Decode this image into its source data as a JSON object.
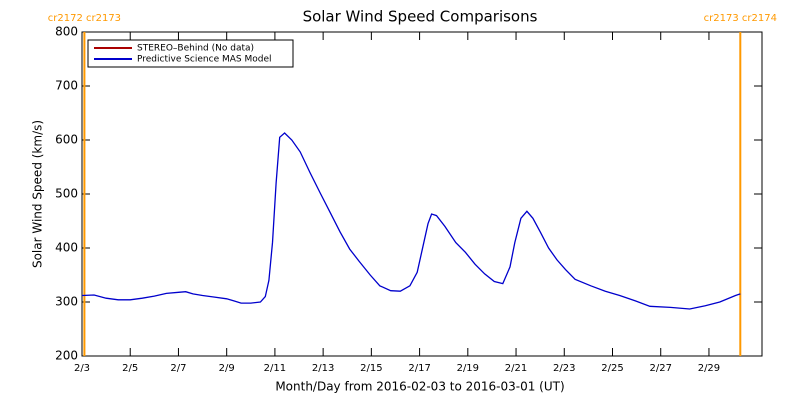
{
  "chart_data": {
    "type": "line",
    "title": "Solar Wind Speed Comparisons",
    "x_label": "Month/Day from 2016-02-03 to 2016-03-01 (UT)",
    "y_label": "Solar Wind Speed (km/s)",
    "xlim": [
      3,
      31.2
    ],
    "ylim": [
      200,
      800
    ],
    "yticks": [
      200,
      300,
      400,
      500,
      600,
      700,
      800
    ],
    "xticks": [
      {
        "value": 3,
        "label": "2/3"
      },
      {
        "value": 5,
        "label": "2/5"
      },
      {
        "value": 7,
        "label": "2/7"
      },
      {
        "value": 9,
        "label": "2/9"
      },
      {
        "value": 11,
        "label": "2/11"
      },
      {
        "value": 13,
        "label": "2/13"
      },
      {
        "value": 15,
        "label": "2/15"
      },
      {
        "value": 17,
        "label": "2/17"
      },
      {
        "value": 19,
        "label": "2/19"
      },
      {
        "value": 21,
        "label": "2/21"
      },
      {
        "value": 23,
        "label": "2/23"
      },
      {
        "value": 25,
        "label": "2/25"
      },
      {
        "value": 27,
        "label": "2/27"
      },
      {
        "value": 29,
        "label": "2/29"
      }
    ],
    "x": [
      3,
      3.5,
      4,
      4.5,
      5,
      5.5,
      6,
      6.5,
      7,
      7.3,
      7.6,
      8,
      8.5,
      9,
      9.3,
      9.6,
      10,
      10.4,
      10.6,
      10.75,
      10.9,
      11.05,
      11.2,
      11.4,
      11.7,
      12.05,
      12.45,
      12.9,
      13.3,
      13.7,
      14.1,
      14.5,
      14.95,
      15.35,
      15.8,
      16.2,
      16.6,
      16.9,
      17.1,
      17.35,
      17.5,
      17.7,
      18.05,
      18.5,
      18.9,
      19.3,
      19.7,
      20.1,
      20.45,
      20.75,
      20.95,
      21.2,
      21.45,
      21.7,
      22.0,
      22.35,
      22.7,
      23.05,
      23.45,
      24.1,
      24.7,
      25.3,
      25.95,
      26.55,
      27.4,
      28.2,
      28.85,
      29.45,
      30.1,
      30.3
    ],
    "series": [
      {
        "name": "STEREO–Behind (No data)",
        "color": "#aa0000",
        "values": [
          null,
          null,
          null,
          null,
          null,
          null,
          null,
          null,
          null,
          null,
          null,
          null,
          null,
          null,
          null,
          null,
          null,
          null,
          null,
          null,
          null,
          null,
          null,
          null,
          null,
          null,
          null,
          null,
          null,
          null,
          null,
          null,
          null,
          null,
          null,
          null,
          null,
          null,
          null,
          null,
          null,
          null,
          null,
          null,
          null,
          null,
          null,
          null,
          null,
          null,
          null,
          null,
          null,
          null,
          null,
          null,
          null,
          null,
          null,
          null,
          null,
          null,
          null,
          null,
          null,
          null,
          null,
          null,
          null,
          null
        ]
      },
      {
        "name": "Predictive Science MAS Model",
        "color": "#0000cc",
        "values": [
          312,
          313,
          307,
          304,
          304,
          307,
          311,
          316,
          318,
          319,
          315,
          312,
          309,
          306,
          302,
          298,
          298,
          300,
          310,
          340,
          410,
          520,
          605,
          613,
          600,
          578,
          540,
          500,
          465,
          430,
          398,
          375,
          350,
          330,
          321,
          320,
          330,
          355,
          395,
          445,
          463,
          460,
          440,
          410,
          392,
          370,
          352,
          338,
          334,
          365,
          410,
          455,
          468,
          455,
          430,
          400,
          378,
          360,
          342,
          330,
          320,
          312,
          302,
          292,
          290,
          287,
          293,
          300,
          312,
          315
        ]
      }
    ],
    "markers": [
      {
        "label": "cr2172 cr2173",
        "x": 3.1,
        "color": "#ff9900"
      },
      {
        "label": "cr2173 cr2174",
        "x": 30.3,
        "color": "#ff9900"
      }
    ]
  }
}
